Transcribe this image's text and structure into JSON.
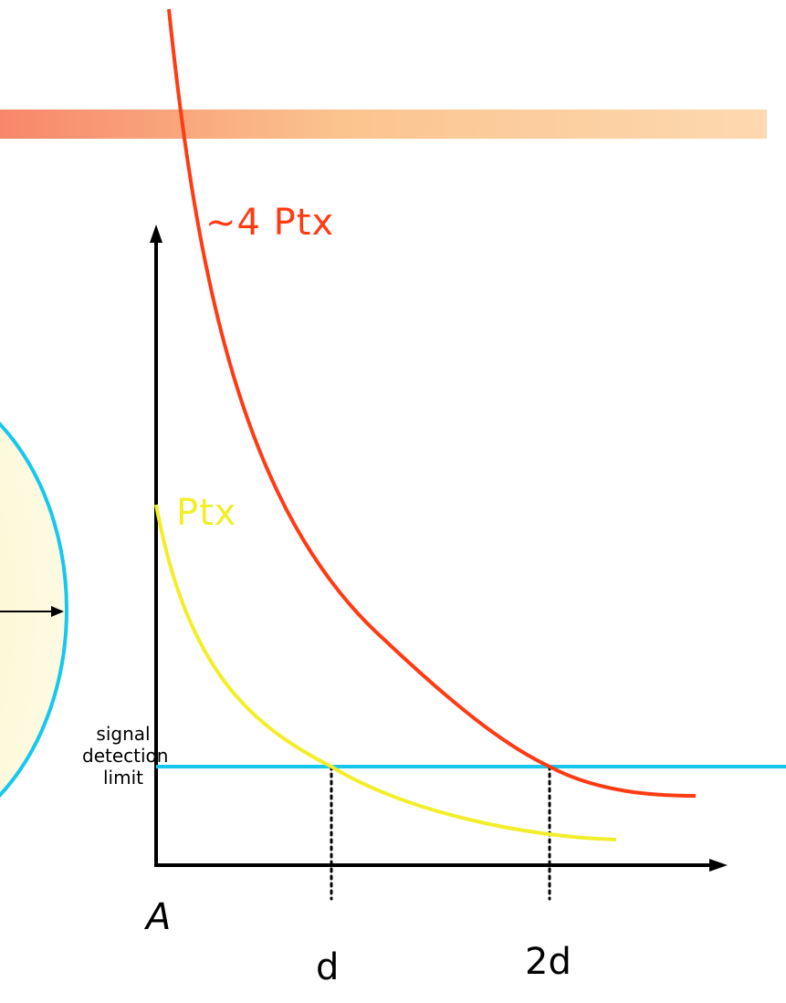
{
  "slide": {
    "header_band_colors": [
      "#f7876a",
      "#fbc48f",
      "#fdd9b0"
    ]
  },
  "diagram": {
    "labels": {
      "curve_high": "~4 Ptx",
      "curve_low": "Ptx",
      "threshold": "signal detection limit",
      "origin": "A",
      "x_tick_1": "d",
      "x_tick_2": "2d"
    },
    "colors": {
      "curve_high": "#ff3b14",
      "curve_low": "#f2ee2a",
      "threshold": "#16c8ee",
      "circle_fill": "#fdf7cc",
      "axes": "#000000"
    }
  }
}
